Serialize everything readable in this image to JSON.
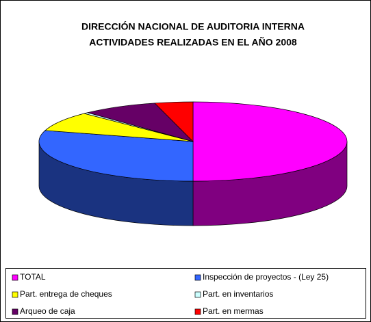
{
  "chart_data": {
    "type": "pie3d",
    "title": "DIRECCIÓN NACIONAL DE AUDITORIA INTERNA",
    "subtitle": "ACTIVIDADES REALIZADAS EN EL AÑO 2008",
    "categories": [
      "TOTAL",
      "Inspección de proyectos - (Ley 25)",
      "Part. entrega de cheques",
      "Part. en inventarios",
      "Arqueo de caja",
      "Part. en mermas"
    ],
    "values": [
      50,
      29.5,
      8,
      0.5,
      8,
      4
    ],
    "colors": [
      "#ff00ff",
      "#3366ff",
      "#ffff00",
      "#ccffff",
      "#660066",
      "#ff0000"
    ],
    "legend": "bottom"
  }
}
